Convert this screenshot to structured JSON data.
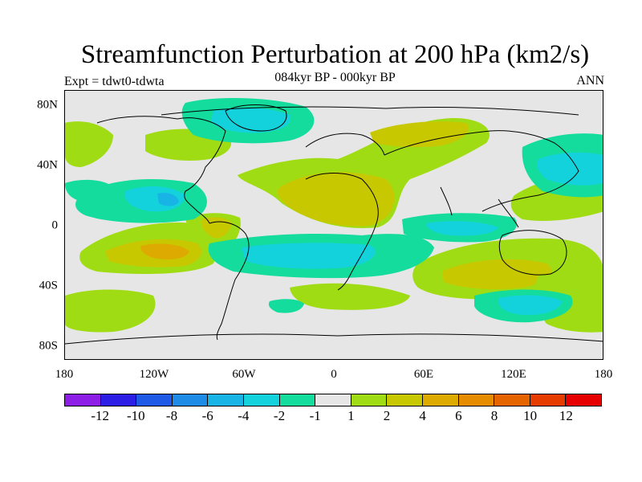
{
  "title": "Streamfunction Perturbation at 200 hPa (km2/s)",
  "subtitle": "084kyr BP - 000kyr BP",
  "left_label": "Expt = tdwt0-tdwta",
  "right_label": "ANN",
  "axes": {
    "lat_labels": [
      "80N",
      "40N",
      "0",
      "40S",
      "80S"
    ],
    "lon_labels": [
      "180",
      "120W",
      "60W",
      "0",
      "60E",
      "120E",
      "180"
    ]
  },
  "colorbar": {
    "colors": [
      "#8c1ee6",
      "#2d1ee6",
      "#1e5ae6",
      "#1e8ce6",
      "#18b4e6",
      "#14d2dc",
      "#14dc9c",
      "#e6e6e6",
      "#a0dc14",
      "#c8c800",
      "#dcaa00",
      "#e68c00",
      "#e66400",
      "#e63c00",
      "#e60000"
    ],
    "labels": [
      "-12",
      "-10",
      "-8",
      "-6",
      "-4",
      "-2",
      "-1",
      "1",
      "2",
      "4",
      "6",
      "8",
      "10",
      "12"
    ]
  }
}
